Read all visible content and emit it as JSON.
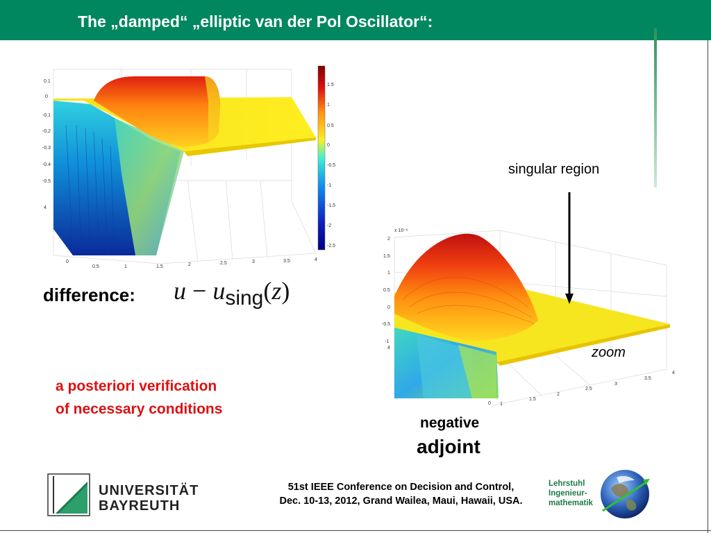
{
  "header": {
    "title": "The „damped“ „elliptic van der Pol Oscillator“:",
    "color": "#00875f"
  },
  "left_plot": {
    "y_ticks": [
      "0.1",
      "0",
      "-0.1",
      "-0.2",
      "-0.3",
      "-0.4",
      "-0.5",
      "4"
    ],
    "x_ticks": [
      "0",
      "0.5",
      "1",
      "1.5",
      "2",
      "2.5",
      "3",
      "3.5",
      "4"
    ],
    "colorbar_ticks": [
      "1.5",
      "1",
      "0.5",
      "0",
      "-0.5",
      "-1",
      "-1.5",
      "-2",
      "-2.5"
    ]
  },
  "right_plot": {
    "exponent_label": "x 10⁻⁶",
    "y_ticks": [
      "2",
      "1.5",
      "1",
      "0.5",
      "0",
      "-0.5",
      "-1",
      "4"
    ],
    "x_ticks": [
      "0",
      "1",
      "1.5",
      "2",
      "2.5",
      "3",
      "3.5",
      "4"
    ]
  },
  "annotations": {
    "difference_label": "difference:",
    "formula_u": "u",
    "formula_minus": "−",
    "formula_u2": "u",
    "formula_sub": "sing",
    "formula_open": "(",
    "formula_z": "z",
    "formula_close": ")",
    "verification_line1": "a posteriori verification",
    "verification_line2": "of necessary conditions",
    "singular_region": "singular region",
    "zoom": "zoom",
    "negative": "negative",
    "adjoint": "adjoint"
  },
  "footer": {
    "university_line1": "UNIVERSITÄT",
    "university_line2": "BAYREUTH",
    "conference_line1": "51st IEEE Conference on Decision and Control,",
    "conference_line2": "Dec. 10-13, 2012, Grand Wailea, Maui, Hawaii, USA.",
    "chair_line1": "Lehrstuhl",
    "chair_line2": "Ingenieur-",
    "chair_line3": "mathematik"
  }
}
